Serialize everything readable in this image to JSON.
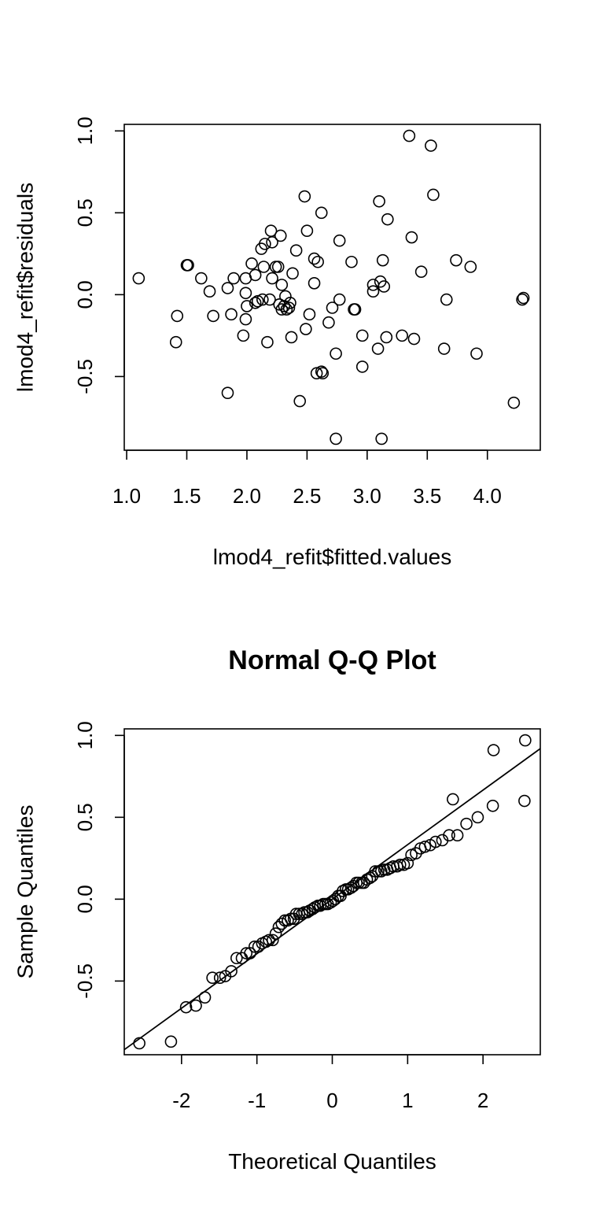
{
  "chart_data": [
    {
      "type": "scatter",
      "title": "",
      "xlabel": "lmod4_refit$fitted.values",
      "ylabel": "lmod4_refit$residuals",
      "xlim": [
        0.98,
        4.44
      ],
      "ylim": [
        -0.95,
        1.04
      ],
      "xticks": [
        "1.0",
        "1.5",
        "2.0",
        "2.5",
        "3.0",
        "3.5",
        "4.0"
      ],
      "yticks": [
        "-0.5",
        "0.0",
        "0.5",
        "1.0"
      ],
      "grid": false,
      "points": [
        [
          1.1,
          0.1
        ],
        [
          1.42,
          -0.13
        ],
        [
          1.41,
          -0.29
        ],
        [
          1.5,
          0.18
        ],
        [
          1.51,
          0.18
        ],
        [
          1.62,
          0.1
        ],
        [
          1.69,
          0.02
        ],
        [
          1.72,
          -0.13
        ],
        [
          1.84,
          0.04
        ],
        [
          1.84,
          -0.6
        ],
        [
          1.87,
          -0.12
        ],
        [
          1.89,
          0.1
        ],
        [
          1.97,
          -0.25
        ],
        [
          1.99,
          0.1
        ],
        [
          1.99,
          -0.15
        ],
        [
          1.99,
          0.01
        ],
        [
          2.0,
          -0.07
        ],
        [
          2.04,
          0.19
        ],
        [
          2.07,
          0.12
        ],
        [
          2.07,
          -0.05
        ],
        [
          2.09,
          -0.04
        ],
        [
          2.12,
          0.28
        ],
        [
          2.13,
          -0.03
        ],
        [
          2.14,
          0.17
        ],
        [
          2.15,
          0.31
        ],
        [
          2.17,
          -0.29
        ],
        [
          2.19,
          -0.03
        ],
        [
          2.2,
          0.39
        ],
        [
          2.21,
          0.32
        ],
        [
          2.21,
          0.1
        ],
        [
          2.24,
          0.17
        ],
        [
          2.26,
          0.17
        ],
        [
          2.28,
          0.36
        ],
        [
          2.27,
          -0.06
        ],
        [
          2.29,
          0.06
        ],
        [
          2.29,
          -0.09
        ],
        [
          2.31,
          -0.07
        ],
        [
          2.32,
          -0.01
        ],
        [
          2.33,
          -0.09
        ],
        [
          2.35,
          -0.08
        ],
        [
          2.36,
          -0.05
        ],
        [
          2.37,
          -0.26
        ],
        [
          2.38,
          0.13
        ],
        [
          2.41,
          0.27
        ],
        [
          2.44,
          -0.65
        ],
        [
          2.48,
          0.6
        ],
        [
          2.49,
          -0.21
        ],
        [
          2.5,
          0.39
        ],
        [
          2.52,
          -0.12
        ],
        [
          2.56,
          0.22
        ],
        [
          2.56,
          0.07
        ],
        [
          2.58,
          -0.48
        ],
        [
          2.59,
          0.2
        ],
        [
          2.62,
          -0.47
        ],
        [
          2.62,
          0.5
        ],
        [
          2.63,
          -0.48
        ],
        [
          2.68,
          -0.17
        ],
        [
          2.71,
          -0.08
        ],
        [
          2.74,
          -0.36
        ],
        [
          2.74,
          -0.88
        ],
        [
          2.77,
          -0.03
        ],
        [
          2.77,
          0.33
        ],
        [
          2.87,
          0.2
        ],
        [
          2.89,
          -0.09
        ],
        [
          2.9,
          -0.09
        ],
        [
          2.96,
          -0.25
        ],
        [
          2.96,
          -0.44
        ],
        [
          3.05,
          0.06
        ],
        [
          3.05,
          0.02
        ],
        [
          3.09,
          -0.33
        ],
        [
          3.1,
          0.57
        ],
        [
          3.11,
          0.08
        ],
        [
          3.12,
          -0.88
        ],
        [
          3.13,
          0.21
        ],
        [
          3.14,
          0.05
        ],
        [
          3.16,
          -0.26
        ],
        [
          3.17,
          0.46
        ],
        [
          3.29,
          -0.25
        ],
        [
          3.35,
          0.97
        ],
        [
          3.37,
          0.35
        ],
        [
          3.39,
          -0.27
        ],
        [
          3.45,
          0.14
        ],
        [
          3.53,
          0.91
        ],
        [
          3.55,
          0.61
        ],
        [
          3.64,
          -0.33
        ],
        [
          3.66,
          -0.03
        ],
        [
          3.74,
          0.21
        ],
        [
          3.86,
          0.17
        ],
        [
          3.91,
          -0.36
        ],
        [
          4.22,
          -0.66
        ],
        [
          4.29,
          -0.03
        ],
        [
          4.3,
          -0.02
        ]
      ]
    },
    {
      "type": "scatter",
      "title": "Normal Q-Q Plot",
      "xlabel": "Theoretical Quantiles",
      "ylabel": "Sample Quantiles",
      "xlim": [
        -2.76,
        2.76
      ],
      "ylim": [
        -0.95,
        1.04
      ],
      "xticks": [
        "-2",
        "-1",
        "0",
        "1",
        "2"
      ],
      "yticks": [
        "-0.5",
        "0.0",
        "0.5",
        "1.0"
      ],
      "grid": false,
      "reference_line": {
        "intercept": 0.0,
        "slope": 0.333
      },
      "points": [
        [
          -2.56,
          -0.88
        ],
        [
          -2.14,
          -0.87
        ],
        [
          -1.94,
          -0.66
        ],
        [
          -1.81,
          -0.65
        ],
        [
          -1.69,
          -0.6
        ],
        [
          -1.59,
          -0.48
        ],
        [
          -1.49,
          -0.48
        ],
        [
          -1.42,
          -0.47
        ],
        [
          -1.34,
          -0.44
        ],
        [
          -1.27,
          -0.36
        ],
        [
          -1.2,
          -0.36
        ],
        [
          -1.14,
          -0.33
        ],
        [
          -1.09,
          -0.33
        ],
        [
          -1.03,
          -0.29
        ],
        [
          -0.98,
          -0.29
        ],
        [
          -0.93,
          -0.27
        ],
        [
          -0.88,
          -0.26
        ],
        [
          -0.84,
          -0.25
        ],
        [
          -0.79,
          -0.25
        ],
        [
          -0.75,
          -0.21
        ],
        [
          -0.71,
          -0.17
        ],
        [
          -0.67,
          -0.15
        ],
        [
          -0.63,
          -0.13
        ],
        [
          -0.59,
          -0.13
        ],
        [
          -0.55,
          -0.12
        ],
        [
          -0.51,
          -0.12
        ],
        [
          -0.48,
          -0.09
        ],
        [
          -0.44,
          -0.09
        ],
        [
          -0.4,
          -0.09
        ],
        [
          -0.37,
          -0.08
        ],
        [
          -0.33,
          -0.08
        ],
        [
          -0.3,
          -0.07
        ],
        [
          -0.26,
          -0.06
        ],
        [
          -0.23,
          -0.05
        ],
        [
          -0.19,
          -0.04
        ],
        [
          -0.16,
          -0.04
        ],
        [
          -0.12,
          -0.03
        ],
        [
          -0.09,
          -0.03
        ],
        [
          -0.06,
          -0.03
        ],
        [
          -0.02,
          -0.02
        ],
        [
          0.01,
          -0.01
        ],
        [
          0.04,
          0.0
        ],
        [
          0.08,
          0.02
        ],
        [
          0.11,
          0.02
        ],
        [
          0.14,
          0.05
        ],
        [
          0.18,
          0.06
        ],
        [
          0.21,
          0.06
        ],
        [
          0.25,
          0.07
        ],
        [
          0.28,
          0.08
        ],
        [
          0.32,
          0.1
        ],
        [
          0.35,
          0.1
        ],
        [
          0.39,
          0.1
        ],
        [
          0.42,
          0.1
        ],
        [
          0.46,
          0.12
        ],
        [
          0.5,
          0.13
        ],
        [
          0.53,
          0.14
        ],
        [
          0.57,
          0.17
        ],
        [
          0.61,
          0.17
        ],
        [
          0.65,
          0.17
        ],
        [
          0.69,
          0.18
        ],
        [
          0.73,
          0.18
        ],
        [
          0.77,
          0.19
        ],
        [
          0.81,
          0.2
        ],
        [
          0.86,
          0.2
        ],
        [
          0.9,
          0.21
        ],
        [
          0.95,
          0.21
        ],
        [
          1.0,
          0.22
        ],
        [
          1.05,
          0.27
        ],
        [
          1.11,
          0.28
        ],
        [
          1.17,
          0.31
        ],
        [
          1.23,
          0.32
        ],
        [
          1.3,
          0.33
        ],
        [
          1.37,
          0.35
        ],
        [
          1.46,
          0.36
        ],
        [
          1.55,
          0.39
        ],
        [
          1.66,
          0.39
        ],
        [
          1.78,
          0.46
        ],
        [
          1.93,
          0.5
        ],
        [
          2.13,
          0.57
        ],
        [
          2.55,
          0.6
        ],
        [
          1.6,
          0.61
        ],
        [
          2.14,
          0.91
        ],
        [
          2.56,
          0.97
        ]
      ]
    }
  ]
}
